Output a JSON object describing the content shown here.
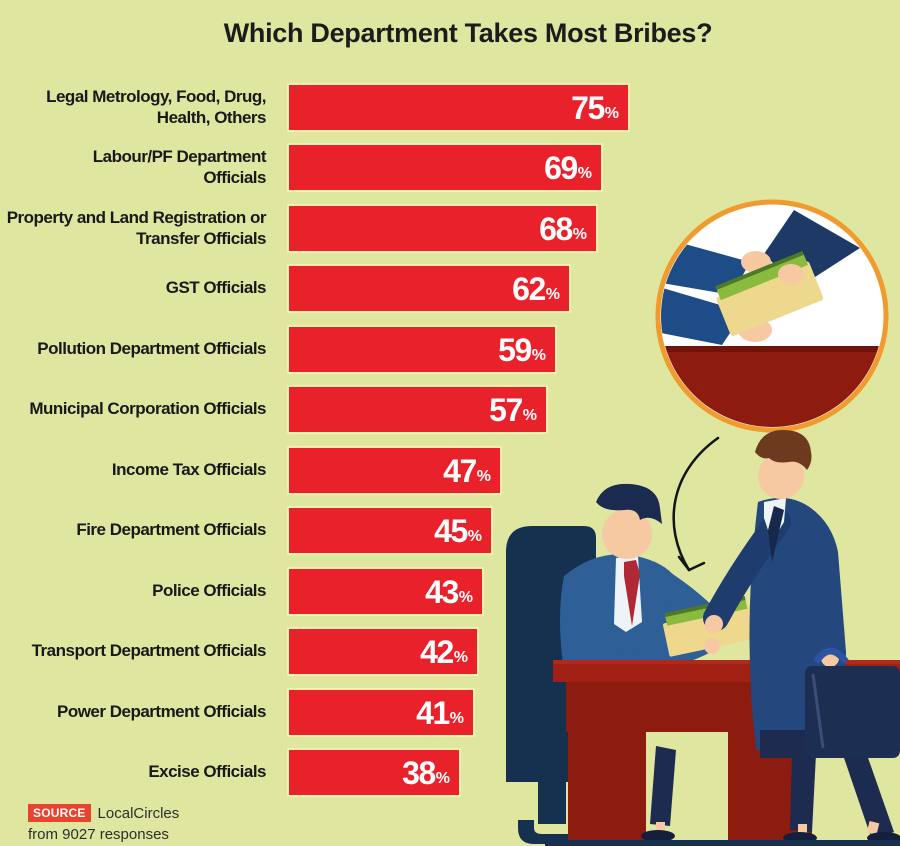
{
  "title": "Which Department Takes Most Bribes?",
  "chart_data": {
    "type": "bar",
    "orientation": "horizontal",
    "title": "Which Department Takes Most Bribes?",
    "unit": "%",
    "xlim": [
      0,
      100
    ],
    "grid": false,
    "legend": false,
    "bar_color": "#e9212b",
    "bar_border_color": "#f4efad",
    "value_label_color": "#ffffff",
    "categories": [
      "Legal Metrology, Food, Drug,\nHealth, Others",
      "Labour/PF Department\nOfficials",
      "Property and Land Registration or\nTransfer Officials",
      "GST Officials",
      "Pollution Department Officials",
      "Municipal Corporation Officials",
      "Income Tax Officials",
      "Fire Department Officials",
      "Police Officials",
      "Transport Department Officials",
      "Power Department Officials",
      "Excise Officials"
    ],
    "values": [
      75,
      69,
      68,
      62,
      59,
      57,
      47,
      45,
      43,
      42,
      41,
      38
    ]
  },
  "source": {
    "badge_label": "SOURCE",
    "name": "LocalCircles",
    "note": "from 9027 responses"
  },
  "colors": {
    "background": "#dfe6a0",
    "bar_red": "#e9212b",
    "title_text": "#1c1c1c",
    "source_badge_red": "#e8432d",
    "inset_border_orange": "#ef9b2d",
    "desk_red": "#8e1b10",
    "seated_suit_blue": "#2f5f97",
    "standing_suit_navy": "#24477e",
    "envelope_yellow": "#eed88d",
    "money_green": "#8aba3e",
    "skin_tone": "#f6c9a3"
  },
  "illustration": {
    "inset": "close-up of hands exchanging cash-filled envelope over desk",
    "scene": "businessman handing bribe envelope to official seated at desk"
  }
}
